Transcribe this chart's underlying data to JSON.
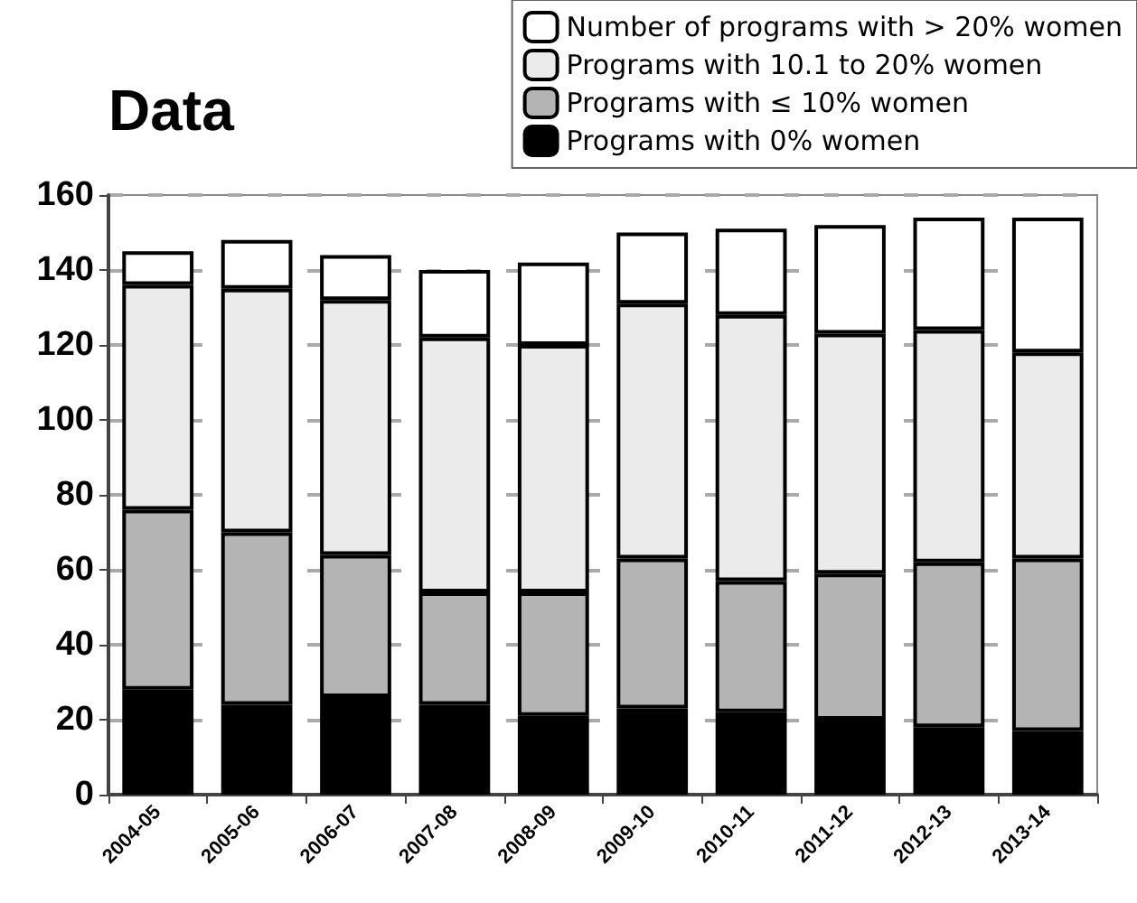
{
  "chart_data": {
    "type": "bar",
    "title": "Data",
    "stacked": true,
    "categories": [
      "2004-05",
      "2005-06",
      "2006-07",
      "2007-08",
      "2008-09",
      "2009-10",
      "2010-11",
      "2011-12",
      "2012-13",
      "2013-14"
    ],
    "series": [
      {
        "name": "Programs with 0% women",
        "color": "#000000",
        "values": [
          28,
          24,
          26,
          24,
          21,
          23,
          22,
          20,
          18,
          17
        ]
      },
      {
        "name": "Programs with ≤ 10% women",
        "color": "#b4b4b4",
        "values": [
          48,
          46,
          38,
          30,
          33,
          40,
          35,
          39,
          44,
          46
        ]
      },
      {
        "name": "Programs with 10.1 to 20% women",
        "color": "#ebebeb",
        "values": [
          60,
          65,
          68,
          68,
          66,
          68,
          71,
          64,
          62,
          55
        ]
      },
      {
        "name": "Number of programs with > 20% women",
        "color": "#ffffff",
        "values": [
          9,
          13,
          12,
          18,
          22,
          19,
          23,
          29,
          30,
          36
        ]
      }
    ],
    "ylim": [
      0,
      160
    ],
    "yticks": [
      0,
      20,
      40,
      60,
      80,
      100,
      120,
      140,
      160
    ],
    "grid": "y",
    "legend": "top right"
  }
}
